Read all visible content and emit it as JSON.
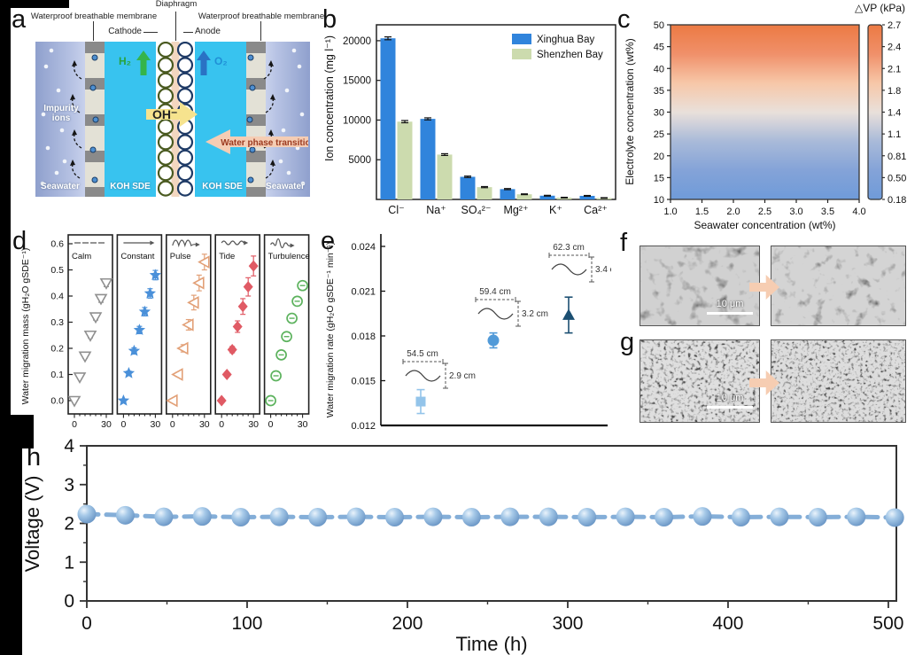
{
  "panels": {
    "a": {
      "label": "a",
      "diaphragm": "Diaphragm",
      "membrane_left": "Waterproof breathable membrane",
      "membrane_right": "Waterproof breathable membrane",
      "cathode": "Cathode",
      "anode": "Anode",
      "h2": "H₂",
      "o2": "O₂",
      "oh": "OH⁻",
      "impurity_ions": "Impurity ions",
      "water_phase_transition": "Water phase transition",
      "koh_sde_left": "KOH SDE",
      "koh_sde_right": "KOH SDE",
      "seawater_left": "Seawater",
      "seawater_right": "Seawater"
    },
    "b": {
      "label": "b"
    },
    "c": {
      "label": "c"
    },
    "d": {
      "label": "d"
    },
    "e": {
      "label": "e"
    },
    "f": {
      "label": "f",
      "scale_bar": "10 μm"
    },
    "g": {
      "label": "g",
      "scale_bar": "10 μm"
    },
    "h": {
      "label": "h"
    }
  },
  "chart_data": [
    {
      "panel": "b",
      "type": "bar",
      "categories": [
        "Cl⁻",
        "Na⁺",
        "SO₄²⁻",
        "Mg²⁺",
        "K⁺",
        "Ca²⁺"
      ],
      "series": [
        {
          "name": "Xinghua Bay",
          "color": "#3084dc",
          "values": [
            20300,
            10150,
            2850,
            1300,
            470,
            450
          ],
          "errors": [
            180,
            130,
            90,
            70,
            50,
            50
          ]
        },
        {
          "name": "Shenzhen Bay",
          "color": "#ccdbae",
          "values": [
            9800,
            5650,
            1550,
            650,
            230,
            180
          ],
          "errors": [
            140,
            110,
            70,
            50,
            40,
            40
          ]
        }
      ],
      "ylabel": "Ion concentration (mg l⁻¹)",
      "yticks": [
        5000,
        10000,
        15000,
        20000
      ],
      "ylim": [
        0,
        22000
      ],
      "legend_position": "top-right"
    },
    {
      "panel": "c",
      "type": "heatmap",
      "xlabel": "Seawater concentration (wt%)",
      "ylabel": "Electrolyte concentration (wt%)",
      "xticks": [
        "1.0",
        "1.5",
        "2.0",
        "2.5",
        "3.0",
        "3.5",
        "4.0"
      ],
      "yticks": [
        "50",
        "45",
        "40",
        "35",
        "30",
        "25",
        "20",
        "15",
        "10"
      ],
      "xlim": [
        1.0,
        4.0
      ],
      "ylim": [
        10,
        50
      ],
      "colorbar_title": "△VP (kPa)",
      "colorbar_ticks": [
        "2.7",
        "2.4",
        "2.1",
        "1.8",
        "1.4",
        "1.1",
        "0.81",
        "0.50",
        "0.18"
      ],
      "gradient_top_to_bottom": [
        "#ec7a43",
        "#f0906a",
        "#f7c7a8",
        "#e9e0da",
        "#a9bad9",
        "#84a3d8",
        "#6f9bd9"
      ],
      "trend": "ΔVP increases with electrolyte concentration (10→50 wt%), nearly independent of seawater concentration (1→4 wt%)"
    },
    {
      "panel": "d",
      "type": "scatter-multi",
      "ylabel": "Water migration mass (gH₂O gSDE⁻¹)",
      "yticks": [
        "0.0",
        "0.1",
        "0.2",
        "0.3",
        "0.4",
        "0.5",
        "0.6"
      ],
      "ylim": [
        -0.04,
        0.63
      ],
      "x": [
        0,
        5,
        10,
        15,
        20,
        25,
        30
      ],
      "xticks": [
        "0",
        "30"
      ],
      "series": [
        {
          "name": "Calm",
          "icon": "calm-flat-line",
          "marker": "triangle-down-open",
          "color": "#909090",
          "values": [
            0.0,
            0.09,
            0.17,
            0.25,
            0.32,
            0.39,
            0.45
          ],
          "errors": [
            0,
            0.006,
            0.008,
            0.01,
            0.012,
            0.014,
            0.014
          ]
        },
        {
          "name": "Constant",
          "icon": "constant-arrow",
          "marker": "star",
          "color": "#4a90d9",
          "values": [
            0.0,
            0.105,
            0.19,
            0.27,
            0.34,
            0.41,
            0.48
          ],
          "errors": [
            0,
            0.008,
            0.012,
            0.014,
            0.016,
            0.018,
            0.018
          ]
        },
        {
          "name": "Pulse",
          "icon": "pulse-wave",
          "marker": "triangle-left-open",
          "color": "#e2a077",
          "values": [
            0.0,
            0.1,
            0.2,
            0.29,
            0.375,
            0.45,
            0.53
          ],
          "errors": [
            0,
            0.008,
            0.014,
            0.02,
            0.028,
            0.03,
            0.03
          ]
        },
        {
          "name": "Tide",
          "icon": "tide-wave",
          "marker": "diamond",
          "color": "#e05a64",
          "values": [
            0.0,
            0.1,
            0.195,
            0.283,
            0.36,
            0.435,
            0.515
          ],
          "errors": [
            0,
            0.006,
            0.012,
            0.022,
            0.03,
            0.035,
            0.038
          ]
        },
        {
          "name": "Turbulence",
          "icon": "turbulence-wave",
          "marker": "circle-open-dash",
          "color": "#5cb25d",
          "values": [
            0.0,
            0.095,
            0.175,
            0.245,
            0.315,
            0.38,
            0.44
          ],
          "errors": [
            0,
            0.008,
            0.008,
            0.01,
            0.012,
            0.012,
            0.012
          ]
        }
      ]
    },
    {
      "panel": "e",
      "type": "scatter",
      "ylabel": "Water migration rate (gH₂O gSDE⁻¹ min⁻¹)",
      "yticks": [
        "0.012",
        "0.015",
        "0.018",
        "0.021",
        "0.024"
      ],
      "ylim": [
        0.012,
        0.024
      ],
      "points": [
        {
          "x": 1,
          "y": 0.0136,
          "err": 0.0008,
          "marker": "square",
          "color": "#93c4ea",
          "wavelength": "54.5 cm",
          "amplitude": "2.9 cm"
        },
        {
          "x": 2,
          "y": 0.0177,
          "err": 0.0005,
          "marker": "circle",
          "color": "#519ad8",
          "wavelength": "59.4 cm",
          "amplitude": "3.2 cm"
        },
        {
          "x": 3,
          "y": 0.0194,
          "err": 0.0012,
          "marker": "triangle-up",
          "color": "#1b4f72",
          "wavelength": "62.3 cm",
          "amplitude": "3.4 cm"
        }
      ]
    },
    {
      "panel": "h",
      "type": "line",
      "xlabel": "Time (h)",
      "ylabel": "Voltage (V)",
      "xticks": [
        0,
        100,
        200,
        300,
        400,
        500
      ],
      "yticks": [
        0,
        1,
        2,
        3,
        4
      ],
      "xlim": [
        0,
        505
      ],
      "ylim": [
        0,
        4
      ],
      "line_color": "#84aed8",
      "marker": "sphere",
      "marker_color": "#6fa0d6",
      "x": [
        0,
        24,
        48,
        72,
        96,
        120,
        144,
        168,
        192,
        216,
        240,
        264,
        288,
        312,
        336,
        360,
        384,
        408,
        432,
        456,
        480,
        504
      ],
      "values": [
        2.24,
        2.21,
        2.17,
        2.18,
        2.16,
        2.17,
        2.16,
        2.17,
        2.16,
        2.17,
        2.16,
        2.17,
        2.17,
        2.16,
        2.17,
        2.16,
        2.18,
        2.16,
        2.17,
        2.16,
        2.17,
        2.15
      ]
    }
  ]
}
